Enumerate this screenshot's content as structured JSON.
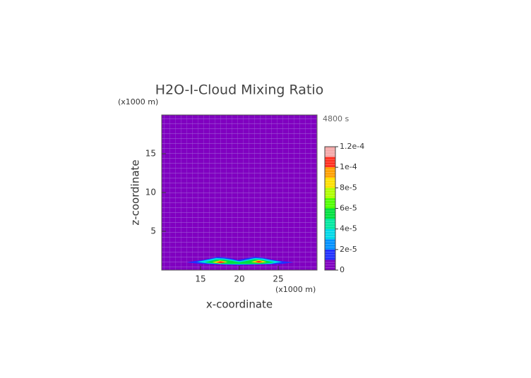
{
  "chart_data": {
    "type": "contour",
    "title": "H2O-I-Cloud Mixing Ratio",
    "x_label": "x-coordinate",
    "y_label": "z-coordinate",
    "x_unit": "(x1000 m)",
    "y_unit": "(x1000 m)",
    "time_label": "4800 s",
    "xlim": [
      10,
      30
    ],
    "ylim": [
      0,
      20
    ],
    "xticks": [
      15,
      20,
      25
    ],
    "yticks": [
      5,
      10,
      15
    ],
    "colorbar": {
      "bounds": [
        0,
        1e-05,
        2e-05,
        3e-05,
        4e-05,
        5e-05,
        6e-05,
        7e-05,
        8e-05,
        9e-05,
        0.0001,
        0.00011,
        0.00012
      ],
      "colors": [
        "#8000c0",
        "#2030ff",
        "#0090ff",
        "#00d8e8",
        "#00e8a0",
        "#00e040",
        "#50ff00",
        "#b0ff00",
        "#ffe000",
        "#ffa000",
        "#ff3020",
        "#f4a8a8"
      ],
      "ticks": [
        0,
        {
          "value": 2e-05,
          "label": "2e-5"
        },
        {
          "value": 4e-05,
          "label": "4e-5"
        },
        {
          "value": 6e-05,
          "label": "6e-5"
        },
        {
          "value": 8e-05,
          "label": "8e-5"
        },
        {
          "value": 0.0001,
          "label": "1e-4"
        },
        {
          "value": 0.00012,
          "label": "1.2e-4"
        }
      ]
    },
    "regions": [
      {
        "level": 1e-05,
        "x": [
          13.2,
          14.5,
          15.5,
          16.5,
          17.2,
          18,
          19,
          19.8,
          20.5,
          21.3,
          22,
          23,
          24,
          25,
          27,
          25.5,
          24,
          22,
          20,
          18,
          16,
          14.5
        ],
        "z": [
          1.0,
          1.2,
          1.35,
          1.55,
          1.7,
          1.65,
          1.5,
          1.3,
          1.45,
          1.6,
          1.7,
          1.6,
          1.4,
          1.2,
          1.0,
          0.8,
          0.75,
          0.7,
          0.65,
          0.7,
          0.75,
          0.85
        ]
      },
      {
        "level": 3e-05,
        "x": [
          14.5,
          16,
          17,
          18,
          19,
          20,
          21,
          22,
          23,
          24,
          25.5,
          24,
          22,
          20,
          18,
          16
        ],
        "z": [
          1.05,
          1.35,
          1.55,
          1.5,
          1.35,
          1.15,
          1.35,
          1.55,
          1.5,
          1.3,
          1.05,
          0.8,
          0.75,
          0.72,
          0.75,
          0.85
        ]
      },
      {
        "level": 5e-05,
        "x": [
          15.5,
          17,
          18,
          19,
          20,
          21,
          22,
          23,
          24.5,
          23,
          21,
          19,
          17
        ],
        "z": [
          1.0,
          1.35,
          1.35,
          1.2,
          1.0,
          1.2,
          1.4,
          1.3,
          1.0,
          0.82,
          0.8,
          0.8,
          0.85
        ]
      },
      {
        "level": 8e-05,
        "x": [
          16.5,
          17.5,
          18.5,
          17.5
        ],
        "z": [
          1.0,
          1.25,
          1.05,
          0.85
        ]
      },
      {
        "level": 8e-05,
        "x": [
          21.5,
          22.5,
          23.5,
          22.5
        ],
        "z": [
          1.05,
          1.3,
          1.05,
          0.9
        ]
      },
      {
        "level": 0.0001,
        "x": [
          17,
          17.6,
          18.2,
          17.6
        ],
        "z": [
          1.0,
          1.15,
          1.0,
          0.9
        ]
      },
      {
        "level": 0.0001,
        "x": [
          22,
          22.5,
          23,
          22.5
        ],
        "z": [
          1.05,
          1.2,
          1.05,
          0.95
        ]
      }
    ]
  }
}
